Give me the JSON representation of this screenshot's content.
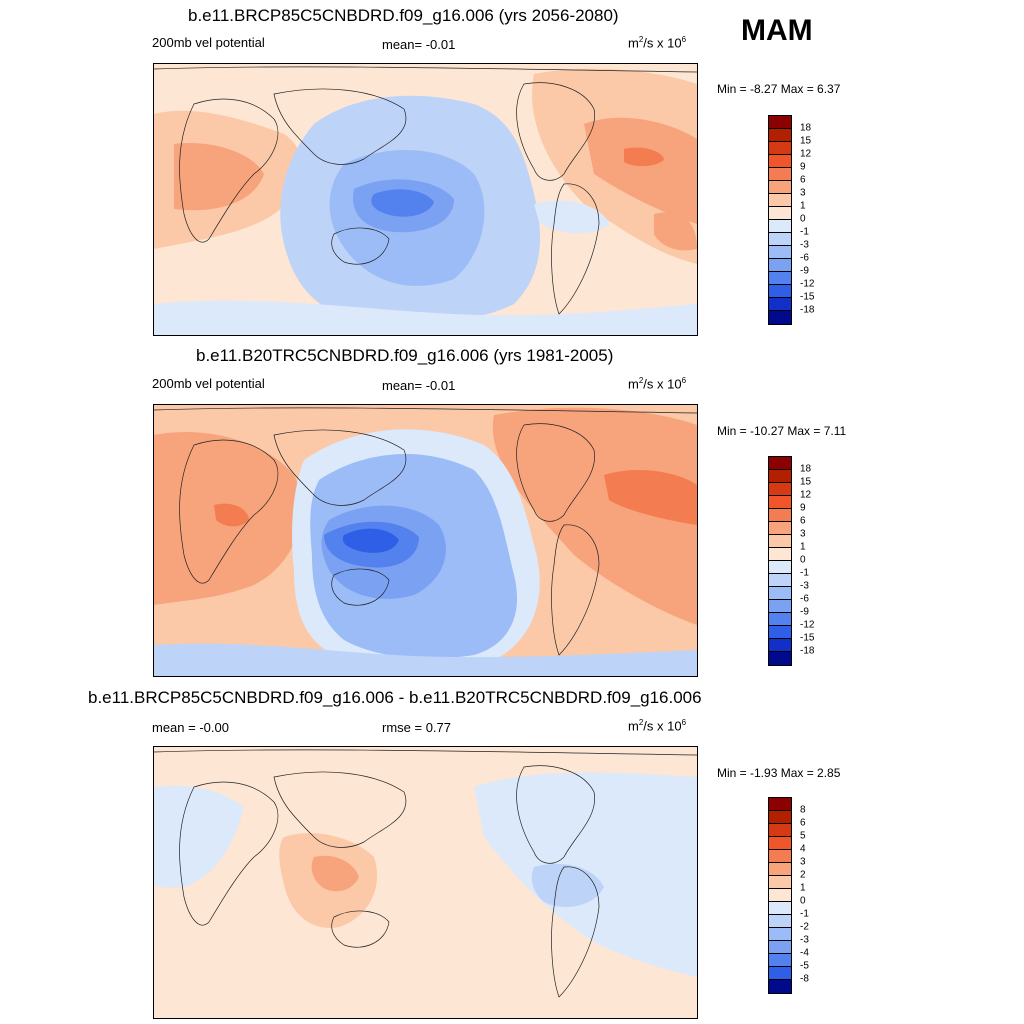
{
  "season": "MAM",
  "panels": [
    {
      "title": "b.e11.BRCP85C5CNBDRD.f09_g16.006 (yrs 2056-2080)",
      "left_label": "200mb vel potential",
      "center_label": "mean=  -0.01",
      "units_base": "m",
      "units_exp": "2",
      "units_mid": "/s x 10",
      "units_exp2": "6",
      "minmax": "Min =  -8.27 Max =   6.37",
      "colorbar_levels": [
        "18",
        "15",
        "12",
        "9",
        "6",
        "3",
        "1",
        "0",
        "-1",
        "-3",
        "-6",
        "-9",
        "-12",
        "-15",
        "-18"
      ]
    },
    {
      "title": "b.e11.B20TRC5CNBDRD.f09_g16.006 (yrs 1981-2005)",
      "left_label": "200mb vel potential",
      "center_label": "mean=  -0.01",
      "units_base": "m",
      "units_exp": "2",
      "units_mid": "/s x 10",
      "units_exp2": "6",
      "minmax": "Min = -10.27 Max =   7.11",
      "colorbar_levels": [
        "18",
        "15",
        "12",
        "9",
        "6",
        "3",
        "1",
        "0",
        "-1",
        "-3",
        "-6",
        "-9",
        "-12",
        "-15",
        "-18"
      ]
    },
    {
      "title": "b.e11.BRCP85C5CNBDRD.f09_g16.006 - b.e11.B20TRC5CNBDRD.f09_g16.006",
      "left_label": "mean =  -0.00",
      "center_label": "rmse =   0.77",
      "units_base": "m",
      "units_exp": "2",
      "units_mid": "/s x 10",
      "units_exp2": "6",
      "minmax": "Min =  -1.93 Max =   2.85",
      "colorbar_levels": [
        "8",
        "6",
        "5",
        "4",
        "3",
        "2",
        "1",
        "0",
        "-1",
        "-2",
        "-3",
        "-4",
        "-5",
        "-8"
      ]
    }
  ],
  "colors": {
    "scale": [
      "#8b0000",
      "#b22000",
      "#d63a12",
      "#f0562a",
      "#f37d50",
      "#f7a47c",
      "#fbc9a8",
      "#fde6d3",
      "#dce9fb",
      "#bdd3f8",
      "#9bbcf6",
      "#7aa1f2",
      "#5381ed",
      "#2e5fe6",
      "#1230c8",
      "#000a8c"
    ],
    "diff_scale": [
      "#8b0000",
      "#b22000",
      "#d63a12",
      "#f0562a",
      "#f37d50",
      "#f7a47c",
      "#fbc9a8",
      "#fde6d3",
      "#dce9fb",
      "#bdd3f8",
      "#9bbcf6",
      "#7aa1f2",
      "#5381ed",
      "#2e5fe6",
      "#000a8c"
    ]
  }
}
